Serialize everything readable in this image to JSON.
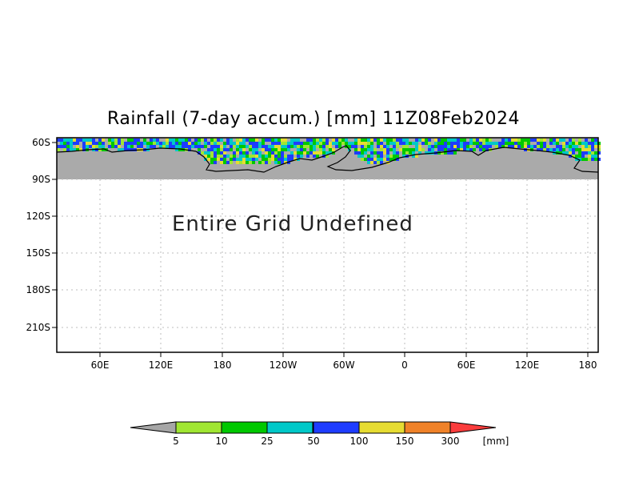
{
  "title": "Rainfall (7-day accum.) [mm] 11Z08Feb2024",
  "message": "Entire Grid Undefined",
  "y_ticks": [
    "60S",
    "90S",
    "120S",
    "150S",
    "180S",
    "210S"
  ],
  "x_ticks": [
    "60E",
    "120E",
    "180",
    "120W",
    "60W",
    "0",
    "60E",
    "120E",
    "180"
  ],
  "colorbar": {
    "labels": [
      "5",
      "10",
      "25",
      "50",
      "100",
      "150",
      "300"
    ],
    "unit": "[mm]",
    "colors": [
      "#a6a6a6",
      "#a0e632",
      "#00c800",
      "#00c8c8",
      "#1e3cff",
      "#e6dc32",
      "#f08228",
      "#fa3c3c"
    ]
  },
  "colors": {
    "land": "#aaaaaa",
    "grid": "#bdbdbd",
    "frame": "#000000"
  }
}
